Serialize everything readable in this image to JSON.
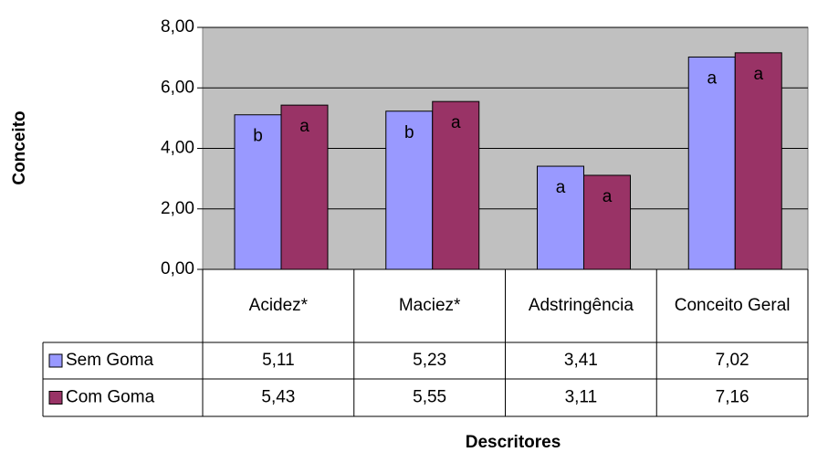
{
  "chart_data": {
    "type": "bar",
    "x_label": "Descritores",
    "y_label": "Conceito",
    "categories": [
      "Acidez*",
      "Maciez*",
      "Adstringência",
      "Conceito Geral"
    ],
    "series": [
      {
        "name": "Sem Goma",
        "color": "#9999ff",
        "values": [
          5.11,
          5.23,
          3.41,
          7.02
        ],
        "value_labels": [
          "5,11",
          "5,23",
          "3,41",
          "7,02"
        ],
        "letters": [
          "b",
          "b",
          "a",
          "a"
        ]
      },
      {
        "name": "Com Goma",
        "color": "#993366",
        "values": [
          5.43,
          5.55,
          3.11,
          7.16
        ],
        "value_labels": [
          "5,43",
          "5,55",
          "3,11",
          "7,16"
        ],
        "letters": [
          "a",
          "a",
          "a",
          "a"
        ]
      }
    ],
    "ylim": [
      0,
      8
    ],
    "yticks": [
      {
        "value": 0,
        "label": "0,00"
      },
      {
        "value": 2,
        "label": "2,00"
      },
      {
        "value": 4,
        "label": "4,00"
      },
      {
        "value": 6,
        "label": "6,00"
      },
      {
        "value": 8,
        "label": "8,00"
      }
    ],
    "grid": true
  }
}
